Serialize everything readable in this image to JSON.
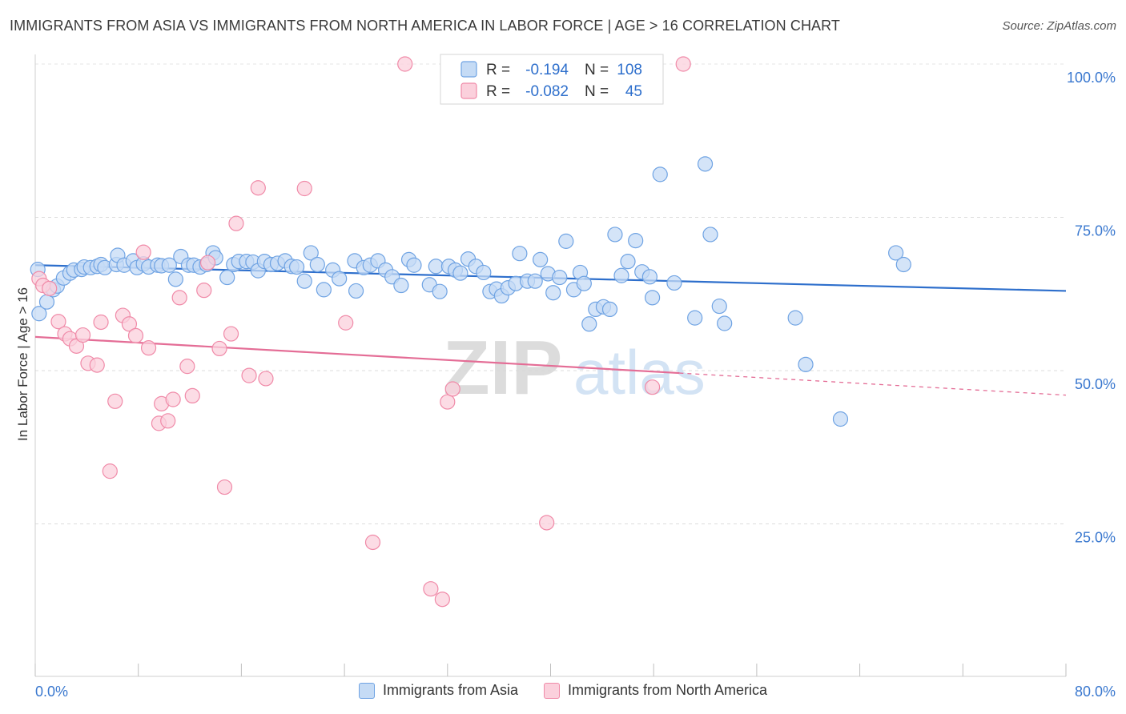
{
  "header": {
    "title": "IMMIGRANTS FROM ASIA VS IMMIGRANTS FROM NORTH AMERICA IN LABOR FORCE | AGE > 16 CORRELATION CHART",
    "source": "Source: ZipAtlas.com"
  },
  "chart_data": {
    "type": "scatter",
    "ylabel": "In Labor Force | Age > 16",
    "xlabel": "",
    "xlim": [
      0,
      80
    ],
    "ylim": [
      0,
      104
    ],
    "x_tick_labels": [
      "0.0%",
      "80.0%"
    ],
    "y_ticks": [
      25,
      50,
      75,
      100
    ],
    "y_tick_labels": [
      "25.0%",
      "50.0%",
      "75.0%",
      "100.0%"
    ],
    "grid": "horizontal dashed",
    "watermark": {
      "part1": "ZIP",
      "part2": "atlas"
    },
    "legend_stats": [
      {
        "r_label": "R =",
        "r_value": "-0.194",
        "n_label": "N =",
        "n_value": "108"
      },
      {
        "r_label": "R =",
        "r_value": "-0.082",
        "n_label": "N =",
        "n_value": "45"
      }
    ],
    "series": [
      {
        "name": "Immigrants from Asia",
        "color": "#6fa3e3",
        "fill": "#c5dbf5",
        "trend": {
          "x": [
            0,
            80
          ],
          "y": [
            67.2,
            63.0
          ],
          "color": "#2e6fcc"
        },
        "points": [
          [
            0.3,
            59.3
          ],
          [
            0.9,
            61.2
          ],
          [
            1.4,
            63.2
          ],
          [
            1.7,
            63.8
          ],
          [
            2.2,
            65.1
          ],
          [
            2.7,
            65.9
          ],
          [
            3.0,
            66.4
          ],
          [
            3.6,
            66.5
          ],
          [
            3.8,
            66.9
          ],
          [
            4.3,
            66.8
          ],
          [
            4.8,
            67.0
          ],
          [
            5.1,
            67.3
          ],
          [
            5.4,
            66.8
          ],
          [
            6.3,
            67.3
          ],
          [
            6.4,
            68.8
          ],
          [
            6.9,
            67.2
          ],
          [
            7.6,
            67.9
          ],
          [
            7.9,
            66.8
          ],
          [
            8.4,
            67.4
          ],
          [
            8.8,
            66.9
          ],
          [
            9.5,
            67.2
          ],
          [
            9.8,
            67.1
          ],
          [
            10.4,
            67.2
          ],
          [
            10.9,
            64.9
          ],
          [
            11.3,
            68.6
          ],
          [
            11.9,
            67.2
          ],
          [
            12.3,
            67.2
          ],
          [
            12.8,
            66.9
          ],
          [
            13.3,
            67.3
          ],
          [
            13.8,
            69.2
          ],
          [
            14.0,
            68.4
          ],
          [
            14.9,
            65.2
          ],
          [
            15.4,
            67.3
          ],
          [
            15.8,
            67.8
          ],
          [
            16.4,
            67.8
          ],
          [
            16.9,
            67.7
          ],
          [
            17.3,
            66.3
          ],
          [
            17.8,
            67.8
          ],
          [
            18.3,
            67.3
          ],
          [
            18.8,
            67.5
          ],
          [
            19.4,
            67.9
          ],
          [
            19.9,
            67.0
          ],
          [
            20.3,
            66.9
          ],
          [
            20.9,
            64.6
          ],
          [
            21.4,
            69.2
          ],
          [
            21.9,
            67.3
          ],
          [
            22.4,
            63.2
          ],
          [
            23.1,
            66.4
          ],
          [
            23.6,
            65.0
          ],
          [
            24.8,
            67.9
          ],
          [
            24.9,
            63.0
          ],
          [
            25.5,
            66.8
          ],
          [
            26.0,
            67.2
          ],
          [
            26.6,
            67.9
          ],
          [
            27.2,
            66.4
          ],
          [
            27.7,
            65.3
          ],
          [
            28.4,
            63.9
          ],
          [
            29.0,
            68.1
          ],
          [
            29.4,
            67.2
          ],
          [
            30.6,
            64.0
          ],
          [
            31.1,
            67.0
          ],
          [
            31.4,
            62.9
          ],
          [
            32.1,
            67.0
          ],
          [
            32.6,
            66.4
          ],
          [
            33.0,
            65.9
          ],
          [
            33.6,
            68.2
          ],
          [
            34.2,
            67.0
          ],
          [
            34.8,
            66.0
          ],
          [
            35.3,
            62.9
          ],
          [
            35.8,
            63.3
          ],
          [
            36.2,
            62.2
          ],
          [
            36.7,
            63.5
          ],
          [
            37.3,
            64.2
          ],
          [
            37.6,
            69.1
          ],
          [
            38.2,
            64.6
          ],
          [
            38.8,
            64.6
          ],
          [
            39.2,
            68.1
          ],
          [
            39.8,
            65.8
          ],
          [
            40.2,
            62.7
          ],
          [
            40.7,
            65.2
          ],
          [
            41.2,
            71.1
          ],
          [
            41.8,
            63.2
          ],
          [
            42.3,
            66.0
          ],
          [
            42.6,
            64.2
          ],
          [
            43.0,
            57.6
          ],
          [
            43.5,
            60.0
          ],
          [
            44.1,
            60.4
          ],
          [
            44.6,
            60.0
          ],
          [
            45.0,
            72.2
          ],
          [
            45.5,
            65.5
          ],
          [
            46.0,
            67.8
          ],
          [
            46.6,
            71.2
          ],
          [
            47.1,
            66.1
          ],
          [
            47.7,
            65.3
          ],
          [
            47.9,
            61.9
          ],
          [
            48.5,
            82.0
          ],
          [
            49.6,
            64.3
          ],
          [
            51.2,
            58.6
          ],
          [
            52.0,
            83.7
          ],
          [
            52.4,
            72.2
          ],
          [
            53.1,
            60.5
          ],
          [
            53.5,
            57.7
          ],
          [
            59.0,
            58.6
          ],
          [
            59.8,
            51.0
          ],
          [
            62.5,
            42.1
          ],
          [
            66.8,
            69.2
          ],
          [
            67.4,
            67.3
          ],
          [
            0.2,
            66.5
          ]
        ]
      },
      {
        "name": "Immigrants from North America",
        "color": "#f08aa8",
        "fill": "#fbd0dc",
        "trend": {
          "x": [
            0,
            50
          ],
          "y": [
            55.5,
            49.6
          ],
          "dashed_extension_to_x": 80,
          "dashed_end_y": 46.0,
          "color": "#e46d96"
        },
        "points": [
          [
            0.3,
            65.0
          ],
          [
            0.6,
            63.9
          ],
          [
            1.1,
            63.4
          ],
          [
            1.8,
            58.0
          ],
          [
            2.3,
            56.0
          ],
          [
            2.7,
            55.2
          ],
          [
            3.2,
            54.0
          ],
          [
            3.7,
            55.8
          ],
          [
            4.1,
            51.2
          ],
          [
            4.8,
            50.9
          ],
          [
            5.1,
            57.9
          ],
          [
            5.8,
            33.6
          ],
          [
            6.2,
            45.0
          ],
          [
            6.8,
            59.0
          ],
          [
            7.3,
            57.6
          ],
          [
            7.8,
            55.7
          ],
          [
            8.4,
            69.3
          ],
          [
            8.8,
            53.7
          ],
          [
            9.6,
            41.4
          ],
          [
            9.8,
            44.6
          ],
          [
            10.3,
            41.8
          ],
          [
            10.7,
            45.3
          ],
          [
            11.2,
            61.9
          ],
          [
            11.8,
            50.7
          ],
          [
            12.2,
            45.9
          ],
          [
            13.1,
            63.1
          ],
          [
            13.4,
            67.6
          ],
          [
            14.3,
            53.6
          ],
          [
            14.7,
            31.0
          ],
          [
            15.2,
            56.0
          ],
          [
            15.6,
            74.0
          ],
          [
            16.6,
            49.2
          ],
          [
            17.3,
            79.8
          ],
          [
            17.9,
            48.7
          ],
          [
            20.9,
            79.7
          ],
          [
            24.1,
            57.8
          ],
          [
            26.2,
            22.0
          ],
          [
            28.7,
            100.0
          ],
          [
            30.7,
            14.4
          ],
          [
            31.6,
            12.7
          ],
          [
            32.0,
            44.9
          ],
          [
            32.4,
            47.0
          ],
          [
            39.7,
            25.2
          ],
          [
            47.9,
            47.3
          ],
          [
            50.3,
            100.0
          ]
        ]
      }
    ]
  }
}
